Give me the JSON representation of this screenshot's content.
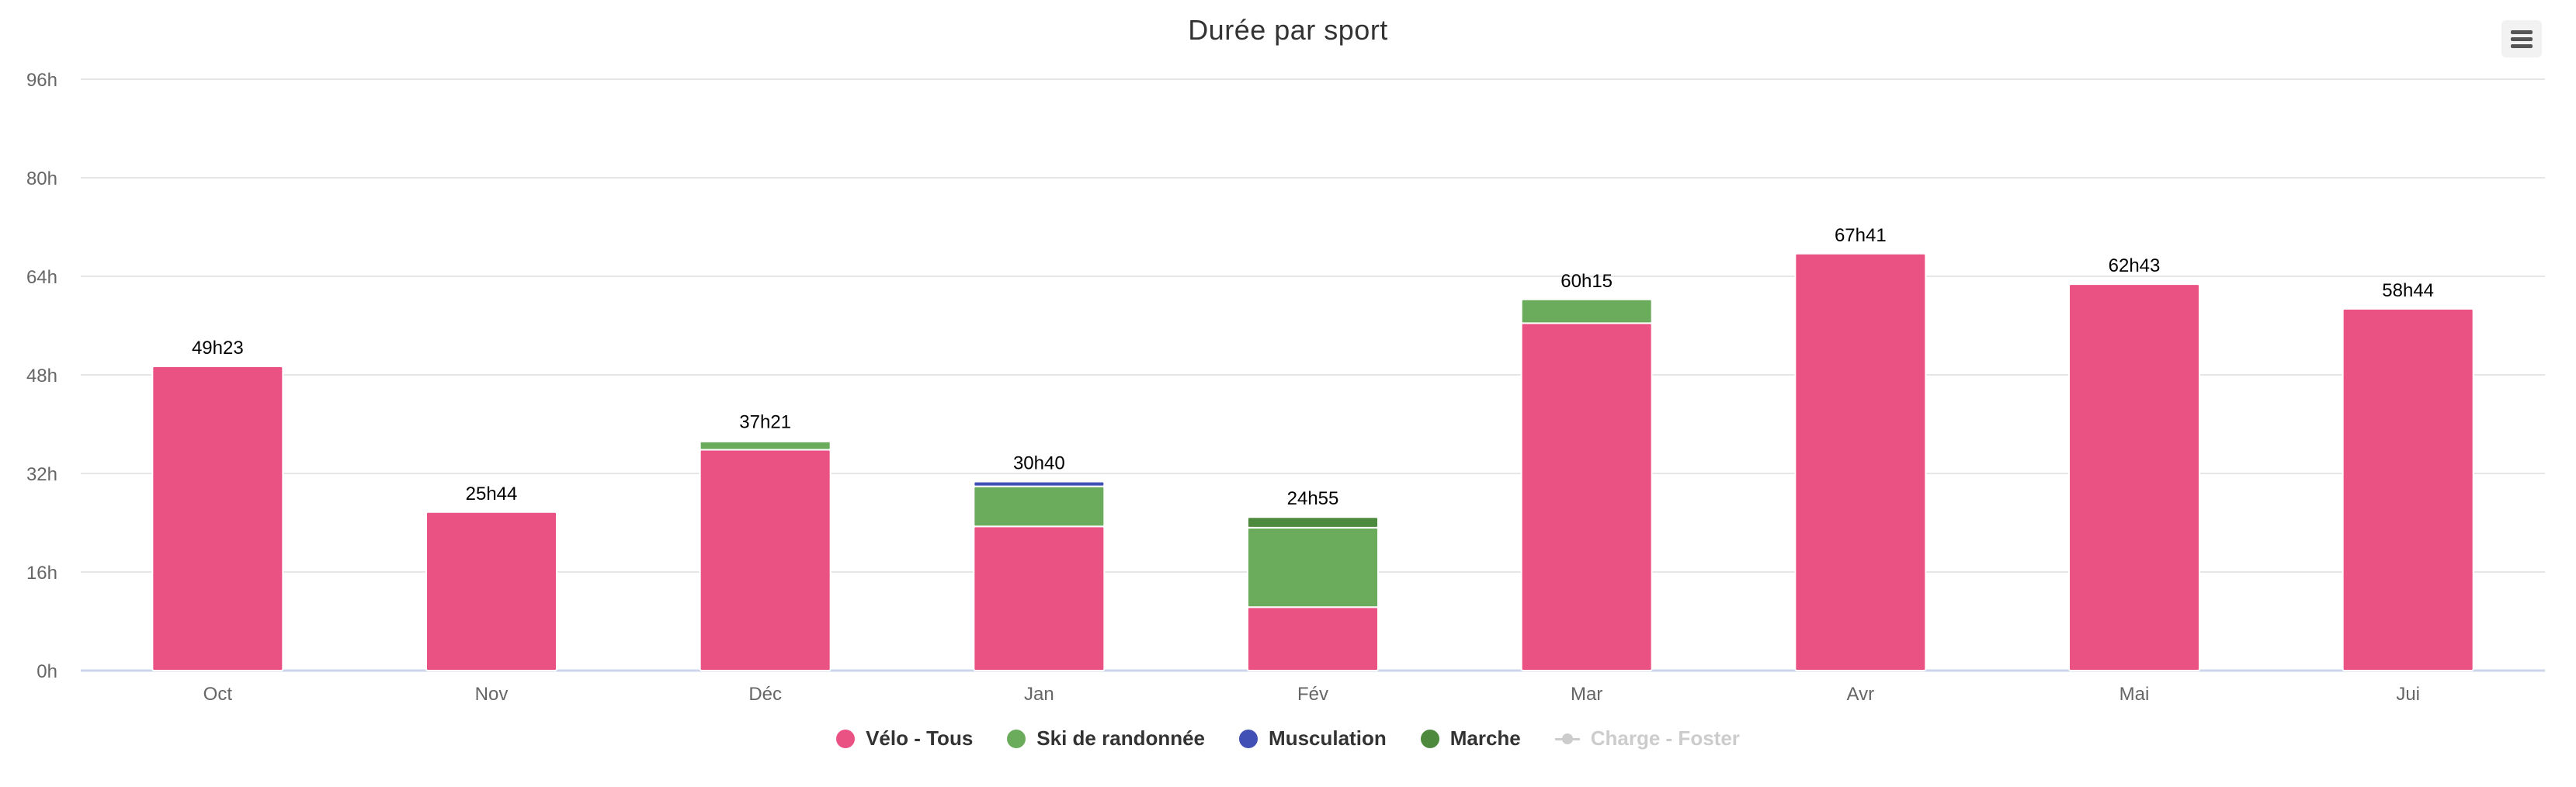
{
  "chart_data": {
    "type": "bar",
    "stacked": true,
    "title": "Durée par sport",
    "xlabel": "",
    "ylabel": "",
    "ylim": [
      0,
      96
    ],
    "yticks": [
      0,
      16,
      32,
      48,
      64,
      80,
      96
    ],
    "ytick_labels": [
      "0h",
      "16h",
      "32h",
      "48h",
      "64h",
      "80h",
      "96h"
    ],
    "grid": true,
    "legend_position": "bottom-center",
    "categories": [
      "Oct",
      "Nov",
      "Déc",
      "Jan",
      "Fév",
      "Mar",
      "Avr",
      "Mai",
      "Jui"
    ],
    "totals": [
      "49h23",
      "25h44",
      "37h21",
      "30h40",
      "24h55",
      "60h15",
      "67h41",
      "62h43",
      "58h44"
    ],
    "series": [
      {
        "name": "Vélo - Tous",
        "color": "#eb5284",
        "values": [
          49.38,
          25.73,
          35.85,
          23.4,
          10.3,
          56.4,
          67.68,
          62.72,
          58.73
        ]
      },
      {
        "name": "Ski de randonnée",
        "color": "#6aab5c",
        "values": [
          0,
          0,
          1.5,
          6.5,
          12.9,
          3.85,
          0,
          0,
          0
        ]
      },
      {
        "name": "Musculation",
        "color": "#4050b5",
        "values": [
          0,
          0,
          0,
          0.77,
          0,
          0,
          0,
          0,
          0
        ]
      },
      {
        "name": "Marche",
        "color": "#4e8a3e",
        "values": [
          0,
          0,
          0.02,
          0,
          1.72,
          0,
          0,
          0,
          0
        ]
      }
    ],
    "hidden_series": [
      {
        "name": "Charge - Foster",
        "type": "line",
        "color": "#cccccc"
      }
    ]
  },
  "toolbar": {
    "menu_icon": "hamburger-menu-icon"
  }
}
